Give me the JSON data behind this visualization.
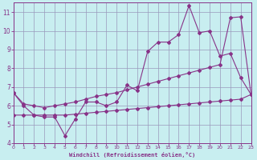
{
  "xlabel": "Windchill (Refroidissement éolien,°C)",
  "background_color": "#c8eef0",
  "grid_color": "#9999bb",
  "line_color": "#883388",
  "xlim": [
    0,
    23
  ],
  "ylim": [
    4,
    11.5
  ],
  "yticks": [
    4,
    5,
    6,
    7,
    8,
    9,
    10,
    11
  ],
  "xticks": [
    0,
    1,
    2,
    3,
    4,
    5,
    6,
    7,
    8,
    9,
    10,
    11,
    12,
    13,
    14,
    15,
    16,
    17,
    18,
    19,
    20,
    21,
    22,
    23
  ],
  "line1_x": [
    0,
    1,
    2,
    3,
    4,
    5,
    6,
    7,
    8,
    9,
    10,
    11,
    12,
    13,
    14,
    15,
    16,
    17,
    18,
    19,
    20,
    21,
    22,
    23
  ],
  "line1_y": [
    6.7,
    6.0,
    5.5,
    5.4,
    5.4,
    4.4,
    5.3,
    6.2,
    6.2,
    6.0,
    6.2,
    7.1,
    6.8,
    8.9,
    9.4,
    9.4,
    9.8,
    11.35,
    9.9,
    10.0,
    8.65,
    8.8,
    7.5,
    6.6
  ],
  "line2_x": [
    0,
    1,
    2,
    3,
    4,
    5,
    6,
    7,
    8,
    9,
    10,
    11,
    12,
    13,
    14,
    15,
    16,
    17,
    18,
    19,
    20,
    21,
    22,
    23
  ],
  "line2_y": [
    6.7,
    6.1,
    6.0,
    5.9,
    6.0,
    6.1,
    6.2,
    6.35,
    6.5,
    6.6,
    6.7,
    6.85,
    7.0,
    7.15,
    7.3,
    7.45,
    7.6,
    7.75,
    7.9,
    8.05,
    8.2,
    10.7,
    10.75,
    6.6
  ],
  "line3_x": [
    0,
    1,
    2,
    3,
    4,
    5,
    6,
    7,
    8,
    9,
    10,
    11,
    12,
    13,
    14,
    15,
    16,
    17,
    18,
    19,
    20,
    21,
    22,
    23
  ],
  "line3_y": [
    5.5,
    5.5,
    5.5,
    5.5,
    5.5,
    5.5,
    5.55,
    5.6,
    5.65,
    5.7,
    5.75,
    5.8,
    5.85,
    5.9,
    5.95,
    6.0,
    6.05,
    6.1,
    6.15,
    6.2,
    6.25,
    6.3,
    6.35,
    6.6
  ]
}
